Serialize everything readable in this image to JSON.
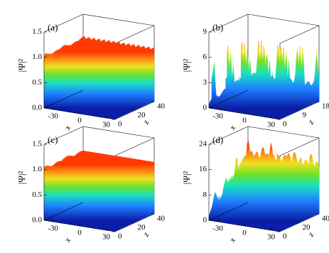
{
  "chart_data": [
    {
      "type": "surface",
      "panel_label": "(a)",
      "zlabel": "|Ψ|²",
      "xlabel": "x",
      "ylabel": "z",
      "xlim": [
        -40,
        40
      ],
      "xticks": [
        -30,
        0,
        30
      ],
      "ylim": [
        0,
        40
      ],
      "yticks": [
        0,
        20,
        40
      ],
      "zlim": [
        0,
        1.5
      ],
      "zticks": [
        {
          "value": 0,
          "label": "0.0"
        },
        {
          "value": 0.5,
          "label": "0.5"
        },
        {
          "value": 1,
          "label": "1.0"
        },
        {
          "value": 1.5,
          "label": "1.5"
        }
      ]
    },
    {
      "type": "surface",
      "panel_label": "(b)",
      "zlabel": "|Ψ|²",
      "xlabel": "x",
      "ylabel": "z",
      "xlim": [
        -40,
        40
      ],
      "xticks": [
        -30,
        0,
        30
      ],
      "ylim": [
        0,
        18
      ],
      "yticks": [
        0,
        9,
        18
      ],
      "zlim": [
        0,
        9
      ],
      "zticks": [
        0,
        3,
        6,
        9
      ]
    },
    {
      "type": "surface",
      "panel_label": "(c)",
      "zlabel": "|Ψ|²",
      "xlabel": "x",
      "ylabel": "z",
      "xlim": [
        -40,
        40
      ],
      "xticks": [
        -30,
        0,
        30
      ],
      "ylim": [
        0,
        40
      ],
      "yticks": [
        0,
        20,
        40
      ],
      "zlim": [
        0,
        1.5
      ],
      "zticks": [
        {
          "value": 0,
          "label": "0.0"
        },
        {
          "value": 0.5,
          "label": "0.5"
        },
        {
          "value": 1,
          "label": "1.0"
        },
        {
          "value": 1.5,
          "label": "1.5"
        }
      ]
    },
    {
      "type": "surface",
      "panel_label": "(d)",
      "zlabel": "|Ψ|²",
      "xlabel": "x",
      "ylabel": "z",
      "xlim": [
        -40,
        40
      ],
      "xticks": [
        -30,
        0,
        30
      ],
      "ylim": [
        0,
        40
      ],
      "yticks": [
        0,
        20,
        40
      ],
      "zlim": [
        0,
        24
      ],
      "zticks": [
        0,
        8,
        16,
        24
      ]
    }
  ]
}
